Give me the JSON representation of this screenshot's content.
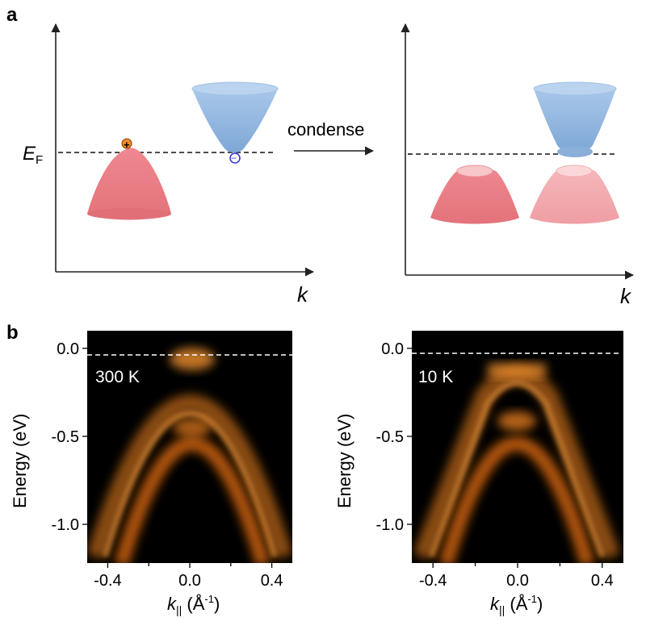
{
  "panel_a": {
    "label": "a",
    "fermi_main": "E",
    "fermi_sub": "F",
    "arrow_text": "condense",
    "k_label": "k",
    "hole_symbol": "+",
    "electron_symbol": "−",
    "colors": {
      "hole": "#e97f86",
      "electron": "#8fb5de",
      "hole_light": "#f3aeb2"
    }
  },
  "panel_b": {
    "label": "b",
    "spectra": [
      {
        "temp_label": "300 K"
      },
      {
        "temp_label": "10 K"
      }
    ],
    "ylabel": "Energy (eV)",
    "xlabel_main": "k",
    "xlabel_sub": "||",
    "xlabel_unit": " (Å",
    "xlabel_exp": "-1",
    "xlabel_close": ")",
    "colors": {
      "band": "#ff8a1c",
      "background": "#000000"
    }
  },
  "chart_data": [
    {
      "type": "heatmap",
      "title": "300 K",
      "xlabel": "k|| (Å-1)",
      "ylabel": "Energy (eV)",
      "xlim": [
        -0.5,
        0.5
      ],
      "ylim": [
        -1.22,
        0.1
      ],
      "x_ticks": [
        -0.4,
        0.0,
        0.4
      ],
      "x_tick_labels": [
        "-0.4",
        "0.0",
        "0.4"
      ],
      "y_ticks": [
        0.0,
        -0.5,
        -1.0
      ],
      "y_tick_labels": [
        "0.0",
        "-0.5",
        "-1.0"
      ],
      "fermi_level_line": 0.0,
      "bands": [
        {
          "name": "outer",
          "apex_energy": 0.02,
          "curvature": -6.5
        },
        {
          "name": "inner",
          "apex_energy": -0.35,
          "curvature": -5.5
        }
      ]
    },
    {
      "type": "heatmap",
      "title": "10 K",
      "xlabel": "k|| (Å-1)",
      "ylabel": "Energy (eV)",
      "xlim": [
        -0.5,
        0.5
      ],
      "ylim": [
        -1.22,
        0.1
      ],
      "x_ticks": [
        -0.4,
        0.0,
        0.4
      ],
      "x_tick_labels": [
        "-0.4",
        "0.0",
        "0.4"
      ],
      "y_ticks": [
        0.0,
        -0.5,
        -1.0
      ],
      "y_tick_labels": [
        "0.0",
        "-0.5",
        "-1.0"
      ],
      "fermi_level_line": 0.0,
      "bands": [
        {
          "name": "outer",
          "apex_energy": -0.08,
          "curvature": -6.5,
          "flat_top": true
        },
        {
          "name": "inner",
          "apex_energy": -0.36,
          "curvature": -5.5
        }
      ]
    }
  ]
}
